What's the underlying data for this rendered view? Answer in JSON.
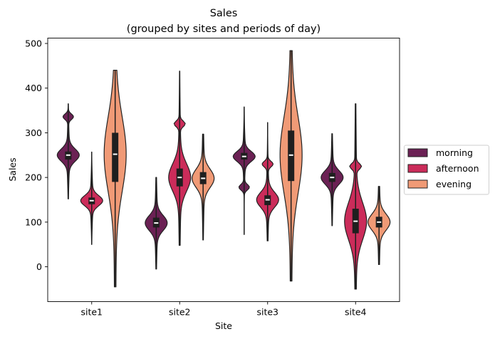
{
  "chart_data": {
    "type": "violin",
    "title": "Sales",
    "subtitle": "(grouped by sites and periods of day)",
    "xlabel": "Site",
    "ylabel": "Sales",
    "categories": [
      "site1",
      "site2",
      "site3",
      "site4"
    ],
    "ylim": [
      -78,
      512
    ],
    "yticks": [
      0,
      100,
      200,
      300,
      400,
      500
    ],
    "grid": false,
    "legend_position": "right",
    "series": [
      {
        "name": "morning",
        "color": "#6b2154",
        "violins": [
          {
            "min": 152,
            "max": 365,
            "q1": 240,
            "median": 250,
            "q3": 258,
            "mode": 250,
            "bump": 336
          },
          {
            "min": -5,
            "max": 200,
            "q1": 88,
            "median": 98,
            "q3": 110,
            "mode": 98,
            "bump": null
          },
          {
            "min": 72,
            "max": 358,
            "q1": 240,
            "median": 247,
            "q3": 255,
            "mode": 247,
            "bump": 178
          },
          {
            "min": 92,
            "max": 298,
            "q1": 190,
            "median": 200,
            "q3": 210,
            "mode": 200,
            "bump": null
          }
        ]
      },
      {
        "name": "afternoon",
        "color": "#cb2c5a",
        "violins": [
          {
            "min": 50,
            "max": 257,
            "q1": 140,
            "median": 148,
            "q3": 155,
            "mode": 148,
            "bump": null
          },
          {
            "min": 48,
            "max": 438,
            "q1": 180,
            "median": 200,
            "q3": 220,
            "mode": 200,
            "bump": 320
          },
          {
            "min": 58,
            "max": 323,
            "q1": 138,
            "median": 150,
            "q3": 160,
            "mode": 150,
            "bump": 230
          },
          {
            "min": -50,
            "max": 365,
            "q1": 75,
            "median": 102,
            "q3": 130,
            "mode": 102,
            "bump": 225
          }
        ]
      },
      {
        "name": "evening",
        "color": "#f09a76",
        "violins": [
          {
            "min": -45,
            "max": 440,
            "q1": 190,
            "median": 252,
            "q3": 300,
            "mode": 252,
            "bump": null
          },
          {
            "min": 60,
            "max": 297,
            "q1": 185,
            "median": 198,
            "q3": 212,
            "mode": 198,
            "bump": null
          },
          {
            "min": -32,
            "max": 484,
            "q1": 192,
            "median": 250,
            "q3": 305,
            "mode": 250,
            "bump": null
          },
          {
            "min": 5,
            "max": 180,
            "q1": 88,
            "median": 100,
            "q3": 112,
            "mode": 100,
            "bump": null
          }
        ]
      }
    ]
  }
}
